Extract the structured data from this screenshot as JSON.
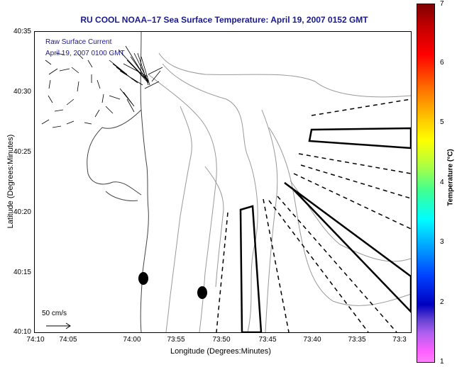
{
  "title": "RU COOL  NOAA–17  Sea Surface Temperature:  April 19, 2007 0152 GMT",
  "overlay": {
    "line1": "Raw Surface Current",
    "line2": "April 19, 2007 0100 GMT"
  },
  "scale_label": "50 cm/s",
  "axes": {
    "xlabel": "Longitude (Degrees:Minutes)",
    "ylabel": "Latitude (Degrees:Minutes)",
    "xticks": [
      "74:10",
      "74:05",
      "74:00",
      "73:55",
      "73:50",
      "73:45",
      "73:40",
      "73:35",
      "73:3"
    ],
    "yticks": [
      "40:35",
      "40:30",
      "40:25",
      "40:20",
      "40:15",
      "40:10"
    ]
  },
  "colorbar": {
    "label": "Temperature (°C)",
    "ticks": [
      "7",
      "6",
      "5",
      "4",
      "3",
      "2",
      "1"
    ]
  }
}
